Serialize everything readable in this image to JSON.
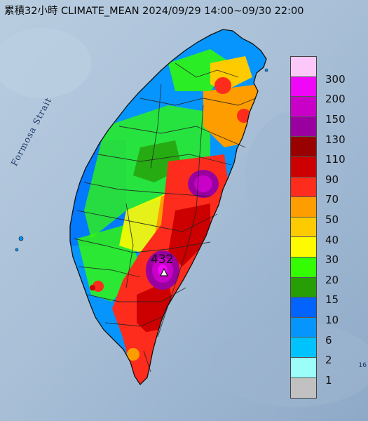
{
  "title": "累積32小時 CLIMATE_MEAN 2024/09/29 14:00~09/30 22:00",
  "strait_label": "Formosa Strait",
  "peak": {
    "value": "432",
    "marker": "triangle-peak-icon"
  },
  "corner_mark": "16",
  "legend": {
    "unit_colors": [
      {
        "label": "300",
        "color": "#fbc8f9"
      },
      {
        "label": "200",
        "color": "#f007f7"
      },
      {
        "label": "150",
        "color": "#c800c8"
      },
      {
        "label": "130",
        "color": "#9a009f"
      },
      {
        "label": "110",
        "color": "#990000"
      },
      {
        "label": "90",
        "color": "#cc0000"
      },
      {
        "label": "70",
        "color": "#fd2c1d"
      },
      {
        "label": "50",
        "color": "#fd9d00"
      },
      {
        "label": "40",
        "color": "#fecb00"
      },
      {
        "label": "30",
        "color": "#fefb00"
      },
      {
        "label": "20",
        "color": "#33fd00"
      },
      {
        "label": "15",
        "color": "#279d06"
      },
      {
        "label": "10",
        "color": "#0263fd"
      },
      {
        "label": "6",
        "color": "#0695fd"
      },
      {
        "label": "2",
        "color": "#00c3fd"
      },
      {
        "label": "1",
        "color": "#9bfef9"
      },
      {
        "label": "",
        "color": "#c1c1c1"
      }
    ],
    "labels": [
      "300",
      "200",
      "150",
      "130",
      "110",
      "90",
      "70",
      "50",
      "40",
      "30",
      "20",
      "15",
      "10",
      "6",
      "2",
      "1"
    ]
  },
  "colors": {
    "sea": "#a9bfd6",
    "sea_deep": "#8fa8c6",
    "outline": "#222222"
  }
}
